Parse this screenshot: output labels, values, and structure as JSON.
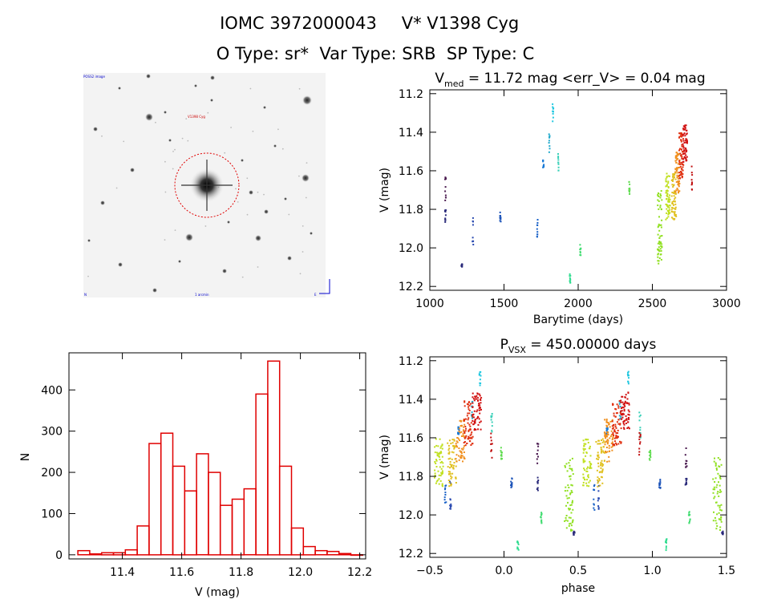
{
  "header": {
    "line1a": "IOMC 3972000043",
    "line1b": "V* V1398 Cyg",
    "line2": "O Type: sr*  Var Type: SRB  SP Type: C"
  },
  "image_panel": {
    "top_left_label": "POSS2 image",
    "red_marker_label": "V1398 Cyg",
    "bottom_left_label": "N",
    "bottom_center_label": "1 arcmin",
    "bottom_right_label": "E"
  },
  "chart_data": [
    {
      "id": "lightcurve",
      "type": "scatter",
      "title_main": "V",
      "title_sub": "med",
      "title_rest": " = 11.72 mag <err_V> = 0.04 mag",
      "xlabel": "Barytime (days)",
      "ylabel": "V (mag)",
      "xlim": [
        1000,
        3000
      ],
      "ylim": [
        12.22,
        11.18
      ],
      "xticks": [
        1000,
        1500,
        2000,
        2500,
        3000
      ],
      "yticks": [
        11.2,
        11.4,
        11.6,
        11.8,
        12.0,
        12.2
      ],
      "ytick_labels": [
        "11.2",
        "11.4",
        "11.6",
        "11.8",
        "12.0",
        "12.2"
      ],
      "groups": [
        {
          "x": 1100,
          "y0": 11.62,
          "y1": 11.75,
          "color": "#4a1a4f"
        },
        {
          "x": 1100,
          "y0": 11.8,
          "y1": 11.87,
          "color": "#2a2a7a"
        },
        {
          "x": 1210,
          "y0": 12.08,
          "y1": 12.1,
          "color": "#2a2a7a"
        },
        {
          "x": 1285,
          "y0": 11.82,
          "y1": 11.98,
          "color": "#2a4ab0"
        },
        {
          "x": 1470,
          "y0": 11.8,
          "y1": 11.86,
          "color": "#1a52b8"
        },
        {
          "x": 1720,
          "y0": 11.84,
          "y1": 11.97,
          "color": "#1a62c8"
        },
        {
          "x": 1760,
          "y0": 11.54,
          "y1": 11.58,
          "color": "#1a7ad6"
        },
        {
          "x": 1800,
          "y0": 11.4,
          "y1": 11.5,
          "color": "#22aacc"
        },
        {
          "x": 1825,
          "y0": 11.25,
          "y1": 11.34,
          "color": "#22c8e0"
        },
        {
          "x": 1860,
          "y0": 11.46,
          "y1": 11.6,
          "color": "#3ad0b8"
        },
        {
          "x": 1940,
          "y0": 12.12,
          "y1": 12.18,
          "color": "#30dc90"
        },
        {
          "x": 2010,
          "y0": 11.98,
          "y1": 12.04,
          "color": "#40dc70"
        },
        {
          "x": 2340,
          "y0": 11.64,
          "y1": 11.72,
          "color": "#60dc50"
        },
        {
          "x": 2545,
          "y0": 11.7,
          "y1": 12.08,
          "color": "#90e020",
          "dense": true
        },
        {
          "x": 2600,
          "y0": 11.6,
          "y1": 11.85,
          "color": "#c0e020",
          "dense": true
        },
        {
          "x": 2640,
          "y0": 11.6,
          "y1": 11.85,
          "color": "#e0c020",
          "dense": true
        },
        {
          "x": 2665,
          "y0": 11.5,
          "y1": 11.72,
          "color": "#f09020",
          "dense": true
        },
        {
          "x": 2690,
          "y0": 11.4,
          "y1": 11.64,
          "color": "#e03010",
          "dense": true
        },
        {
          "x": 2715,
          "y0": 11.36,
          "y1": 11.56,
          "color": "#d01010",
          "dense": true
        },
        {
          "x": 2760,
          "y0": 11.56,
          "y1": 11.7,
          "color": "#c01010"
        }
      ]
    },
    {
      "id": "histogram",
      "type": "bar",
      "xlabel": "V (mag)",
      "ylabel": "N",
      "xlim": [
        11.22,
        12.22
      ],
      "ylim": [
        -10,
        490
      ],
      "xticks": [
        11.4,
        11.6,
        11.8,
        12.0,
        12.2
      ],
      "xtick_labels": [
        "11.4",
        "11.6",
        "11.8",
        "12.0",
        "12.2"
      ],
      "yticks": [
        0,
        100,
        200,
        300,
        400
      ],
      "bin_start": 11.25,
      "bin_width": 0.04,
      "values": [
        10,
        2,
        5,
        5,
        12,
        70,
        270,
        295,
        215,
        155,
        245,
        200,
        120,
        135,
        160,
        390,
        470,
        215,
        65,
        20,
        10,
        8,
        3,
        0
      ]
    },
    {
      "id": "phased",
      "type": "scatter",
      "title_main": "P",
      "title_sub": "VSX",
      "title_rest": " = 450.00000 days",
      "xlabel": "phase",
      "ylabel": "V (mag)",
      "xlim": [
        -0.5,
        1.5
      ],
      "ylim": [
        12.22,
        11.18
      ],
      "xticks": [
        -0.5,
        0.0,
        0.5,
        1.0,
        1.5
      ],
      "xtick_labels": [
        "−0.5",
        "0.0",
        "0.5",
        "1.0",
        "1.5"
      ],
      "yticks": [
        11.2,
        11.4,
        11.6,
        11.8,
        12.0,
        12.2
      ],
      "ytick_labels": [
        "11.2",
        "11.4",
        "11.6",
        "11.8",
        "12.0",
        "12.2"
      ]
    }
  ]
}
